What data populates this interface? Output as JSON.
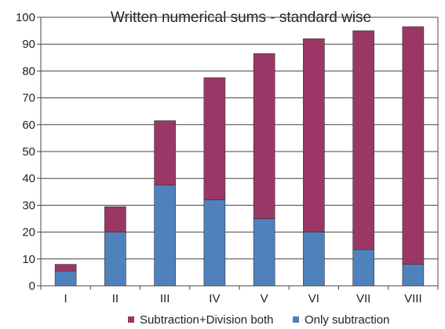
{
  "chart_data": {
    "type": "bar",
    "stacked": true,
    "title": "Written numerical sums - standard wise",
    "xlabel": "",
    "ylabel": "",
    "categories": [
      "I",
      "II",
      "III",
      "IV",
      "V",
      "VI",
      "VII",
      "VIII"
    ],
    "series": [
      {
        "name": "Only subtraction",
        "color": "#4f81bd",
        "values": [
          5.5,
          20,
          37.5,
          32,
          25,
          20,
          13.5,
          8
        ]
      },
      {
        "name": "Subtraction+Division both",
        "color": "#9b3766",
        "values": [
          2.5,
          9.5,
          24,
          45.5,
          61.5,
          72,
          81.5,
          88.5
        ]
      }
    ],
    "ylim": [
      0,
      100
    ],
    "yticks": [
      0,
      10,
      20,
      30,
      40,
      50,
      60,
      70,
      80,
      90,
      100
    ],
    "grid": true,
    "legend_position": "bottom"
  }
}
